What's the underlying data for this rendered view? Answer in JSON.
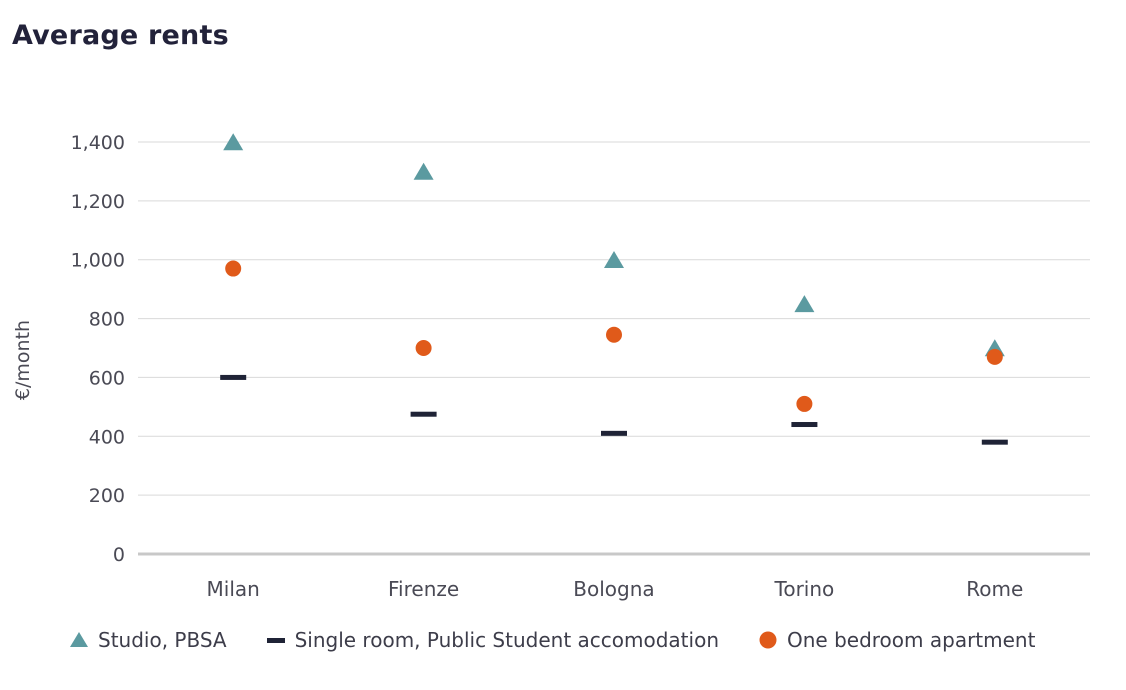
{
  "title": "Average rents",
  "chart_data": {
    "type": "scatter",
    "title": "Average rents",
    "xlabel": "",
    "ylabel": "€/month",
    "categories": [
      "Milan",
      "Firenze",
      "Bologna",
      "Torino",
      "Rome"
    ],
    "ylim": [
      0,
      1400
    ],
    "yticks": [
      0,
      200,
      400,
      600,
      800,
      1000,
      1200,
      1400
    ],
    "ytick_labels": [
      "0",
      "200",
      "400",
      "600",
      "800",
      "1,000",
      "1,200",
      "1,400"
    ],
    "grid": true,
    "legend_position": "bottom",
    "series": [
      {
        "name": "Studio, PBSA",
        "marker": "triangle",
        "color": "#5b9aa0",
        "values": [
          1395,
          1295,
          995,
          845,
          695
        ]
      },
      {
        "name": "Single room, Public Student accomodation",
        "marker": "dash",
        "color": "#1f2336",
        "values": [
          600,
          475,
          410,
          440,
          380
        ]
      },
      {
        "name": "One bedroom apartment",
        "marker": "circle",
        "color": "#e05a1a",
        "values": [
          970,
          700,
          745,
          510,
          670
        ]
      }
    ]
  }
}
